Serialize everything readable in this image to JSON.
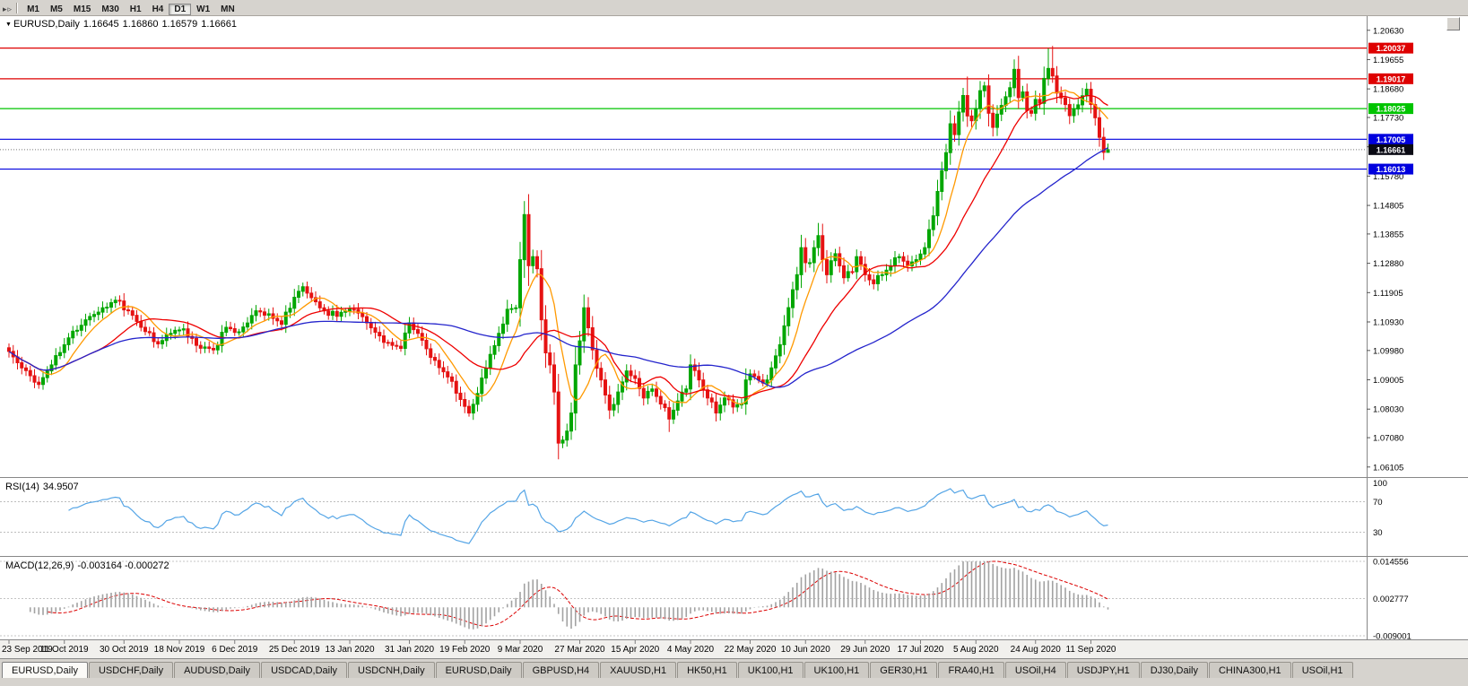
{
  "toolbar": {
    "left_icons": [
      {
        "name": "chart-shift-icon",
        "glyph": "▸"
      },
      {
        "name": "auto-scroll-icon",
        "glyph": "▹"
      }
    ],
    "timeframes": [
      {
        "label": "M1"
      },
      {
        "label": "M5"
      },
      {
        "label": "M15"
      },
      {
        "label": "M30"
      },
      {
        "label": "H1"
      },
      {
        "label": "H4"
      },
      {
        "label": "D1",
        "active": true
      },
      {
        "label": "W1"
      },
      {
        "label": "MN"
      }
    ]
  },
  "chart": {
    "symbol_label": "EURUSD,Daily",
    "ohlc": {
      "open": "1.16645",
      "high": "1.16860",
      "low": "1.16579",
      "close": "1.16661"
    },
    "current_price": {
      "value": 1.16661,
      "label": "1.16661",
      "bg": "#0A0A14"
    },
    "hlines": [
      {
        "price": 1.20037,
        "label": "1.20037",
        "color": "#DE0000"
      },
      {
        "price": 1.19017,
        "label": "1.19017",
        "color": "#DE0000"
      },
      {
        "price": 1.18025,
        "label": "1.18025",
        "color": "#00C400"
      },
      {
        "price": 1.17005,
        "label": "1.17005",
        "color": "#0000DE"
      },
      {
        "price": 1.16013,
        "label": "1.16013",
        "color": "#0000DE"
      }
    ],
    "price_axis": {
      "ticks": [
        "1.20630",
        "1.19655",
        "1.18680",
        "1.17730",
        "1.16755",
        "1.15780",
        "1.14805",
        "1.13855",
        "1.12880",
        "1.11905",
        "1.10930",
        "1.09980",
        "1.09005",
        "1.08030",
        "1.07080",
        "1.06105"
      ]
    },
    "date_axis": {
      "labels": [
        "23 Sep 2019",
        "11 Oct 2019",
        "30 Oct 2019",
        "18 Nov 2019",
        "6 Dec 2019",
        "25 Dec 2019",
        "13 Jan 2020",
        "31 Jan 2020",
        "19 Feb 2020",
        "9 Mar 2020",
        "27 Mar 2020",
        "15 Apr 2020",
        "4 May 2020",
        "22 May 2020",
        "10 Jun 2020",
        "29 Jun 2020",
        "17 Jul 2020",
        "5 Aug 2020",
        "24 Aug 2020",
        "11 Sep 2020"
      ]
    }
  },
  "indicators": {
    "rsi": {
      "label": "RSI(14)",
      "value": "34.9507",
      "period": 14,
      "levels": [
        100,
        70,
        30
      ],
      "dashed_levels": [
        70,
        30
      ],
      "line_color": "#55A5E6"
    },
    "macd": {
      "label": "MACD(12,26,9)",
      "values": "-0.003164 -0.000272",
      "params": [
        12,
        26,
        9
      ],
      "axis_labels": [
        "0.014556",
        "0.002777",
        "-0.009001"
      ],
      "scale_top": 0.014556,
      "scale_bottom": -0.009001,
      "hist_color": "#A2A2A2",
      "signal_color": "#DC0000"
    }
  },
  "chart_data": {
    "type": "candlestick",
    "symbol": "EURUSD",
    "timeframe": "Daily",
    "bar_count": 259,
    "price_range": [
      1.058,
      1.211
    ],
    "colors": {
      "bull": "#00A600",
      "bear": "#E51212"
    },
    "moving_averages": [
      {
        "period": 8,
        "color": "#FF9900"
      },
      {
        "period": 21,
        "color": "#EE0000"
      },
      {
        "period": 55,
        "color": "#2424CC"
      }
    ],
    "close_anchors": [
      [
        0,
        1.0995
      ],
      [
        3,
        1.094
      ],
      [
        7,
        1.0885
      ],
      [
        10,
        1.095
      ],
      [
        14,
        1.104
      ],
      [
        18,
        1.11
      ],
      [
        22,
        1.114
      ],
      [
        25,
        1.1165
      ],
      [
        28,
        1.113
      ],
      [
        31,
        1.1075
      ],
      [
        35,
        1.102
      ],
      [
        38,
        1.1055
      ],
      [
        41,
        1.107
      ],
      [
        44,
        1.1015
      ],
      [
        48,
        1.1
      ],
      [
        51,
        1.1075
      ],
      [
        54,
        1.106
      ],
      [
        58,
        1.113
      ],
      [
        61,
        1.112
      ],
      [
        64,
        1.1085
      ],
      [
        67,
        1.1175
      ],
      [
        69,
        1.121
      ],
      [
        72,
        1.116
      ],
      [
        75,
        1.1115
      ],
      [
        78,
        1.1125
      ],
      [
        81,
        1.1135
      ],
      [
        84,
        1.109
      ],
      [
        88,
        1.1025
      ],
      [
        92,
        1.1005
      ],
      [
        94,
        1.109
      ],
      [
        96,
        1.1055
      ],
      [
        99,
        1.0975
      ],
      [
        103,
        1.091
      ],
      [
        106,
        1.0835
      ],
      [
        108,
        1.079
      ],
      [
        110,
        1.0855
      ],
      [
        113,
        1.0985
      ],
      [
        115,
        1.1055
      ],
      [
        117,
        1.1135
      ],
      [
        119,
        1.114
      ],
      [
        120,
        1.13
      ],
      [
        121,
        1.145
      ],
      [
        122,
        1.128
      ],
      [
        123,
        1.131
      ],
      [
        124,
        1.127
      ],
      [
        125,
        1.11
      ],
      [
        126,
        1.099
      ],
      [
        127,
        1.095
      ],
      [
        128,
        1.086
      ],
      [
        129,
        1.069
      ],
      [
        130,
        1.07
      ],
      [
        131,
        1.073
      ],
      [
        132,
        1.079
      ],
      [
        133,
        1.095
      ],
      [
        134,
        1.103
      ],
      [
        135,
        1.114
      ],
      [
        137,
        1.1
      ],
      [
        139,
        1.09
      ],
      [
        141,
        1.08
      ],
      [
        143,
        1.086
      ],
      [
        145,
        1.093
      ],
      [
        147,
        1.0905
      ],
      [
        149,
        1.084
      ],
      [
        151,
        1.087
      ],
      [
        153,
        1.082
      ],
      [
        155,
        1.077
      ],
      [
        157,
        1.083
      ],
      [
        159,
        1.087
      ],
      [
        160,
        1.095
      ],
      [
        162,
        1.09
      ],
      [
        164,
        1.084
      ],
      [
        166,
        1.079
      ],
      [
        168,
        1.084
      ],
      [
        170,
        1.081
      ],
      [
        172,
        1.082
      ],
      [
        173,
        1.09
      ],
      [
        174,
        1.092
      ],
      [
        176,
        1.09
      ],
      [
        178,
        1.09
      ],
      [
        180,
        1.098
      ],
      [
        182,
        1.108
      ],
      [
        184,
        1.12
      ],
      [
        185,
        1.125
      ],
      [
        186,
        1.134
      ],
      [
        187,
        1.129
      ],
      [
        188,
        1.129
      ],
      [
        189,
        1.134
      ],
      [
        190,
        1.138
      ],
      [
        191,
        1.13
      ],
      [
        192,
        1.125
      ],
      [
        194,
        1.132
      ],
      [
        196,
        1.124
      ],
      [
        198,
        1.126
      ],
      [
        199,
        1.131
      ],
      [
        201,
        1.125
      ],
      [
        203,
        1.122
      ],
      [
        205,
        1.125
      ],
      [
        207,
        1.128
      ],
      [
        209,
        1.131
      ],
      [
        211,
        1.128
      ],
      [
        213,
        1.13
      ],
      [
        215,
        1.134
      ],
      [
        216,
        1.14
      ],
      [
        217,
        1.1446
      ],
      [
        218,
        1.1527
      ],
      [
        219,
        1.1596
      ],
      [
        220,
        1.1656
      ],
      [
        221,
        1.1752
      ],
      [
        222,
        1.1716
      ],
      [
        223,
        1.1791
      ],
      [
        224,
        1.1846
      ],
      [
        225,
        1.1778
      ],
      [
        226,
        1.1762
      ],
      [
        227,
        1.1803
      ],
      [
        228,
        1.1862
      ],
      [
        229,
        1.1878
      ],
      [
        230,
        1.1787
      ],
      [
        231,
        1.174
      ],
      [
        232,
        1.1784
      ],
      [
        233,
        1.1813
      ],
      [
        234,
        1.1842
      ],
      [
        235,
        1.1872
      ],
      [
        236,
        1.1933
      ],
      [
        237,
        1.1839
      ],
      [
        238,
        1.1858
      ],
      [
        239,
        1.1796
      ],
      [
        240,
        1.1787
      ],
      [
        241,
        1.1833
      ],
      [
        242,
        1.182
      ],
      [
        243,
        1.1903
      ],
      [
        244,
        1.1936
      ],
      [
        245,
        1.1911
      ],
      [
        246,
        1.1854
      ],
      [
        247,
        1.1838
      ],
      [
        248,
        1.1816
      ],
      [
        249,
        1.1779
      ],
      [
        250,
        1.1801
      ],
      [
        251,
        1.1815
      ],
      [
        252,
        1.1845
      ],
      [
        253,
        1.1867
      ],
      [
        254,
        1.1816
      ],
      [
        255,
        1.1772
      ],
      [
        256,
        1.1707
      ],
      [
        257,
        1.1657
      ],
      [
        258,
        1.16661
      ]
    ],
    "extremes": [
      [
        108,
        null,
        1.0778
      ],
      [
        121,
        1.1495,
        null
      ],
      [
        129,
        null,
        1.0636
      ],
      [
        155,
        null,
        1.0727
      ],
      [
        190,
        1.1422,
        null
      ],
      [
        225,
        1.1909,
        null
      ],
      [
        236,
        1.1966,
        null
      ],
      [
        244,
        1.2003,
        null
      ],
      [
        245,
        1.2011,
        null
      ],
      [
        258,
        1.1686,
        1.16579
      ]
    ]
  },
  "tabs": [
    {
      "label": "EURUSD,Daily",
      "active": true
    },
    {
      "label": "USDCHF,Daily"
    },
    {
      "label": "AUDUSD,Daily"
    },
    {
      "label": "USDCAD,Daily"
    },
    {
      "label": "USDCNH,Daily"
    },
    {
      "label": "EURUSD,Daily"
    },
    {
      "label": "GBPUSD,H4"
    },
    {
      "label": "XAUUSD,H1"
    },
    {
      "label": "HK50,H1"
    },
    {
      "label": "UK100,H1"
    },
    {
      "label": "UK100,H1"
    },
    {
      "label": "GER30,H1"
    },
    {
      "label": "FRA40,H1"
    },
    {
      "label": "USOil,H4"
    },
    {
      "label": "USDJPY,H1"
    },
    {
      "label": "DJ30,Daily"
    },
    {
      "label": "CHINA300,H1"
    },
    {
      "label": "USOil,H1"
    }
  ]
}
